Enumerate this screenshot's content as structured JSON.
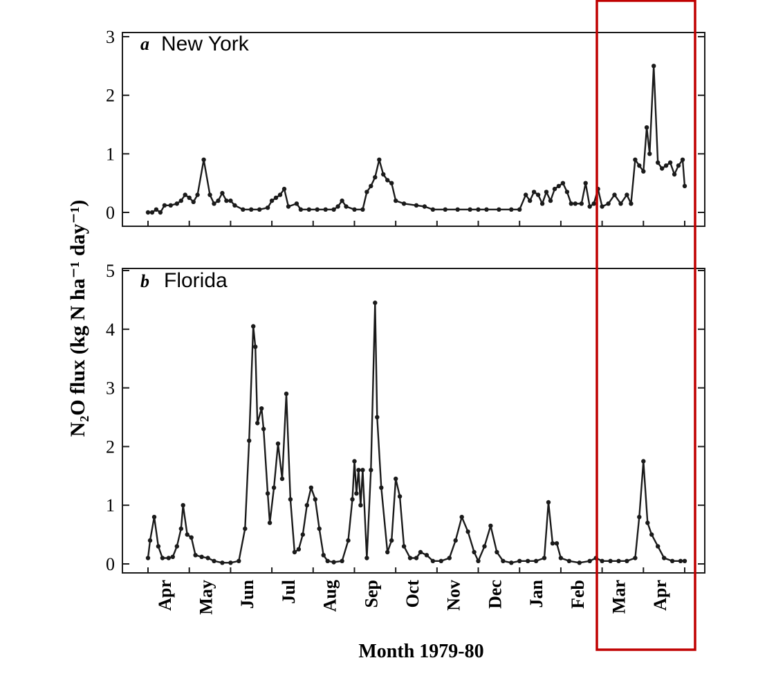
{
  "figure": {
    "ylabel": "N₂O flux (kg N ha⁻¹ day⁻¹)",
    "xlabel": "Month 1979-80",
    "months": [
      "Apr",
      "May",
      "Jun",
      "Jul",
      "Aug",
      "Sep",
      "Oct",
      "Nov",
      "Dec",
      "Jan",
      "Feb",
      "Mar",
      "Apr"
    ],
    "highlight_color": "#c00000",
    "line_color": "#1a1a1a"
  },
  "chart_data": [
    {
      "type": "line",
      "panel_letter": "a",
      "title": "New York",
      "ylim": [
        0,
        3
      ],
      "yticks": [
        "0",
        "1",
        "2",
        "3"
      ],
      "x_unit": "months since 1 Apr 1979",
      "points": [
        [
          0.0,
          0.0
        ],
        [
          0.1,
          0.0
        ],
        [
          0.2,
          0.05
        ],
        [
          0.3,
          0.0
        ],
        [
          0.4,
          0.12
        ],
        [
          0.55,
          0.12
        ],
        [
          0.7,
          0.15
        ],
        [
          0.8,
          0.2
        ],
        [
          0.9,
          0.3
        ],
        [
          1.0,
          0.25
        ],
        [
          1.1,
          0.18
        ],
        [
          1.2,
          0.3
        ],
        [
          1.35,
          0.9
        ],
        [
          1.5,
          0.3
        ],
        [
          1.6,
          0.15
        ],
        [
          1.7,
          0.2
        ],
        [
          1.8,
          0.33
        ],
        [
          1.9,
          0.2
        ],
        [
          2.0,
          0.2
        ],
        [
          2.1,
          0.12
        ],
        [
          2.3,
          0.05
        ],
        [
          2.5,
          0.05
        ],
        [
          2.7,
          0.05
        ],
        [
          2.9,
          0.08
        ],
        [
          3.0,
          0.2
        ],
        [
          3.1,
          0.25
        ],
        [
          3.2,
          0.3
        ],
        [
          3.3,
          0.4
        ],
        [
          3.4,
          0.1
        ],
        [
          3.6,
          0.15
        ],
        [
          3.7,
          0.05
        ],
        [
          3.9,
          0.05
        ],
        [
          4.1,
          0.05
        ],
        [
          4.3,
          0.05
        ],
        [
          4.5,
          0.05
        ],
        [
          4.6,
          0.1
        ],
        [
          4.7,
          0.2
        ],
        [
          4.8,
          0.1
        ],
        [
          5.0,
          0.05
        ],
        [
          5.2,
          0.05
        ],
        [
          5.3,
          0.35
        ],
        [
          5.4,
          0.45
        ],
        [
          5.5,
          0.6
        ],
        [
          5.6,
          0.9
        ],
        [
          5.7,
          0.65
        ],
        [
          5.8,
          0.55
        ],
        [
          5.9,
          0.5
        ],
        [
          6.0,
          0.2
        ],
        [
          6.2,
          0.15
        ],
        [
          6.5,
          0.12
        ],
        [
          6.7,
          0.1
        ],
        [
          6.9,
          0.05
        ],
        [
          7.2,
          0.05
        ],
        [
          7.5,
          0.05
        ],
        [
          7.8,
          0.05
        ],
        [
          8.0,
          0.05
        ],
        [
          8.2,
          0.05
        ],
        [
          8.5,
          0.05
        ],
        [
          8.8,
          0.05
        ],
        [
          9.0,
          0.05
        ],
        [
          9.15,
          0.3
        ],
        [
          9.25,
          0.2
        ],
        [
          9.35,
          0.35
        ],
        [
          9.45,
          0.3
        ],
        [
          9.55,
          0.15
        ],
        [
          9.65,
          0.35
        ],
        [
          9.75,
          0.2
        ],
        [
          9.85,
          0.4
        ],
        [
          9.95,
          0.45
        ],
        [
          10.05,
          0.5
        ],
        [
          10.15,
          0.35
        ],
        [
          10.25,
          0.15
        ],
        [
          10.35,
          0.15
        ],
        [
          10.5,
          0.15
        ],
        [
          10.6,
          0.5
        ],
        [
          10.7,
          0.1
        ],
        [
          10.8,
          0.15
        ],
        [
          10.9,
          0.4
        ],
        [
          11.0,
          0.1
        ],
        [
          11.15,
          0.15
        ],
        [
          11.3,
          0.3
        ],
        [
          11.45,
          0.15
        ],
        [
          11.6,
          0.3
        ],
        [
          11.7,
          0.15
        ],
        [
          11.8,
          0.9
        ],
        [
          11.9,
          0.8
        ],
        [
          12.0,
          0.7
        ],
        [
          12.08,
          1.45
        ],
        [
          12.15,
          1.0
        ],
        [
          12.25,
          2.5
        ],
        [
          12.35,
          0.85
        ],
        [
          12.45,
          0.75
        ],
        [
          12.55,
          0.8
        ],
        [
          12.65,
          0.85
        ],
        [
          12.75,
          0.65
        ],
        [
          12.85,
          0.8
        ],
        [
          12.95,
          0.9
        ],
        [
          13.0,
          0.45
        ]
      ]
    },
    {
      "type": "line",
      "panel_letter": "b",
      "title": "Florida",
      "ylim": [
        0,
        5
      ],
      "yticks": [
        "0",
        "1",
        "2",
        "3",
        "4",
        "5"
      ],
      "x_unit": "months since 1 Apr 1979",
      "points": [
        [
          0.0,
          0.1
        ],
        [
          0.05,
          0.4
        ],
        [
          0.15,
          0.8
        ],
        [
          0.25,
          0.3
        ],
        [
          0.35,
          0.1
        ],
        [
          0.5,
          0.1
        ],
        [
          0.6,
          0.12
        ],
        [
          0.7,
          0.3
        ],
        [
          0.8,
          0.6
        ],
        [
          0.85,
          1.0
        ],
        [
          0.95,
          0.5
        ],
        [
          1.05,
          0.45
        ],
        [
          1.15,
          0.15
        ],
        [
          1.3,
          0.12
        ],
        [
          1.45,
          0.1
        ],
        [
          1.6,
          0.05
        ],
        [
          1.8,
          0.02
        ],
        [
          2.0,
          0.02
        ],
        [
          2.2,
          0.05
        ],
        [
          2.35,
          0.6
        ],
        [
          2.45,
          2.1
        ],
        [
          2.55,
          4.05
        ],
        [
          2.6,
          3.7
        ],
        [
          2.65,
          2.4
        ],
        [
          2.75,
          2.65
        ],
        [
          2.8,
          2.3
        ],
        [
          2.9,
          1.2
        ],
        [
          2.95,
          0.7
        ],
        [
          3.05,
          1.3
        ],
        [
          3.15,
          2.05
        ],
        [
          3.25,
          1.45
        ],
        [
          3.35,
          2.9
        ],
        [
          3.45,
          1.1
        ],
        [
          3.55,
          0.2
        ],
        [
          3.65,
          0.25
        ],
        [
          3.75,
          0.5
        ],
        [
          3.85,
          1.0
        ],
        [
          3.95,
          1.3
        ],
        [
          4.05,
          1.1
        ],
        [
          4.15,
          0.6
        ],
        [
          4.25,
          0.15
        ],
        [
          4.35,
          0.05
        ],
        [
          4.5,
          0.03
        ],
        [
          4.7,
          0.05
        ],
        [
          4.85,
          0.4
        ],
        [
          4.95,
          1.1
        ],
        [
          5.0,
          1.75
        ],
        [
          5.05,
          1.2
        ],
        [
          5.1,
          1.6
        ],
        [
          5.15,
          1.0
        ],
        [
          5.2,
          1.6
        ],
        [
          5.3,
          0.1
        ],
        [
          5.4,
          1.6
        ],
        [
          5.5,
          4.45
        ],
        [
          5.55,
          2.5
        ],
        [
          5.65,
          1.3
        ],
        [
          5.8,
          0.2
        ],
        [
          5.9,
          0.4
        ],
        [
          6.0,
          1.45
        ],
        [
          6.1,
          1.15
        ],
        [
          6.2,
          0.3
        ],
        [
          6.35,
          0.1
        ],
        [
          6.5,
          0.1
        ],
        [
          6.6,
          0.2
        ],
        [
          6.75,
          0.15
        ],
        [
          6.9,
          0.05
        ],
        [
          7.1,
          0.05
        ],
        [
          7.3,
          0.1
        ],
        [
          7.45,
          0.4
        ],
        [
          7.6,
          0.8
        ],
        [
          7.75,
          0.55
        ],
        [
          7.9,
          0.2
        ],
        [
          8.0,
          0.05
        ],
        [
          8.15,
          0.3
        ],
        [
          8.3,
          0.65
        ],
        [
          8.45,
          0.2
        ],
        [
          8.6,
          0.05
        ],
        [
          8.8,
          0.02
        ],
        [
          9.0,
          0.05
        ],
        [
          9.2,
          0.05
        ],
        [
          9.4,
          0.05
        ],
        [
          9.6,
          0.1
        ],
        [
          9.7,
          1.05
        ],
        [
          9.8,
          0.35
        ],
        [
          9.9,
          0.35
        ],
        [
          10.0,
          0.1
        ],
        [
          10.2,
          0.05
        ],
        [
          10.45,
          0.02
        ],
        [
          10.7,
          0.05
        ],
        [
          10.85,
          0.1
        ],
        [
          11.0,
          0.05
        ],
        [
          11.2,
          0.05
        ],
        [
          11.4,
          0.05
        ],
        [
          11.6,
          0.05
        ],
        [
          11.8,
          0.1
        ],
        [
          11.9,
          0.8
        ],
        [
          12.0,
          1.75
        ],
        [
          12.1,
          0.7
        ],
        [
          12.2,
          0.5
        ],
        [
          12.35,
          0.3
        ],
        [
          12.5,
          0.1
        ],
        [
          12.7,
          0.05
        ],
        [
          12.9,
          0.05
        ],
        [
          13.0,
          0.05
        ]
      ]
    }
  ]
}
